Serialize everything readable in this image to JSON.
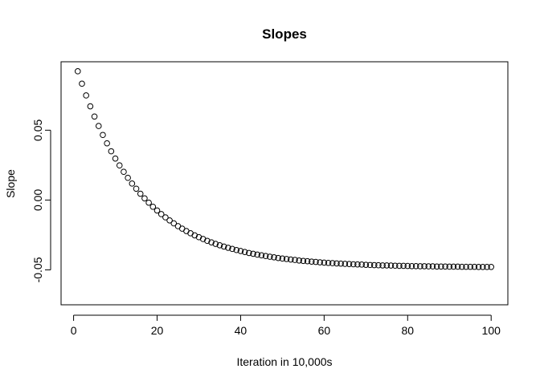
{
  "chart_data": {
    "type": "scatter",
    "title": "Slopes",
    "xlabel": "Iteration in 10,000s",
    "ylabel": "Slope",
    "xlim": [
      -3,
      104
    ],
    "ylim": [
      -0.075,
      0.099
    ],
    "grid": false,
    "point_style": "open-circle",
    "point_color": "#000000",
    "x_ticks": [
      20,
      40,
      60,
      80,
      100
    ],
    "y_ticks": [
      -0.05,
      0.0,
      0.05
    ],
    "y_tick_labels": [
      "-0.05",
      "0.00",
      "0.05"
    ],
    "x": [
      1,
      2,
      3,
      4,
      5,
      6,
      7,
      8,
      9,
      10,
      11,
      12,
      13,
      14,
      15,
      16,
      17,
      18,
      19,
      20,
      21,
      22,
      23,
      24,
      25,
      26,
      27,
      28,
      29,
      30,
      31,
      32,
      33,
      34,
      35,
      36,
      37,
      38,
      39,
      40,
      41,
      42,
      43,
      44,
      45,
      46,
      47,
      48,
      49,
      50,
      51,
      52,
      53,
      54,
      55,
      56,
      57,
      58,
      59,
      60,
      61,
      62,
      63,
      64,
      65,
      66,
      67,
      68,
      69,
      70,
      71,
      72,
      73,
      74,
      75,
      76,
      77,
      78,
      79,
      80,
      81,
      82,
      83,
      84,
      85,
      86,
      87,
      88,
      89,
      90,
      91,
      92,
      93,
      94,
      95,
      96,
      97,
      98,
      99,
      100
    ],
    "y": [
      0.0922,
      0.0833,
      0.0749,
      0.0671,
      0.0598,
      0.053,
      0.0466,
      0.0406,
      0.0349,
      0.0297,
      0.0248,
      0.0202,
      0.0159,
      0.0118,
      0.0081,
      0.0045,
      0.0012,
      -0.0019,
      -0.0048,
      -0.0075,
      -0.0101,
      -0.0124,
      -0.0146,
      -0.0167,
      -0.0187,
      -0.0205,
      -0.0222,
      -0.0238,
      -0.0253,
      -0.0266,
      -0.0279,
      -0.0292,
      -0.0303,
      -0.0314,
      -0.0324,
      -0.0333,
      -0.0342,
      -0.035,
      -0.0358,
      -0.0365,
      -0.0372,
      -0.0379,
      -0.0385,
      -0.0391,
      -0.0396,
      -0.0401,
      -0.0406,
      -0.041,
      -0.0415,
      -0.0419,
      -0.0422,
      -0.0426,
      -0.0429,
      -0.0433,
      -0.0436,
      -0.0438,
      -0.0441,
      -0.0443,
      -0.0446,
      -0.0448,
      -0.045,
      -0.0452,
      -0.0454,
      -0.0455,
      -0.0457,
      -0.0458,
      -0.046,
      -0.0461,
      -0.0462,
      -0.0464,
      -0.0465,
      -0.0466,
      -0.0467,
      -0.0468,
      -0.0468,
      -0.0469,
      -0.047,
      -0.0471,
      -0.0471,
      -0.0472,
      -0.0473,
      -0.0473,
      -0.0474,
      -0.0474,
      -0.0475,
      -0.0475,
      -0.0476,
      -0.0476,
      -0.0476,
      -0.0477,
      -0.0477,
      -0.0477,
      -0.0478,
      -0.0478,
      -0.0478,
      -0.0478,
      -0.0479,
      -0.0479,
      -0.0479,
      -0.0479
    ]
  }
}
